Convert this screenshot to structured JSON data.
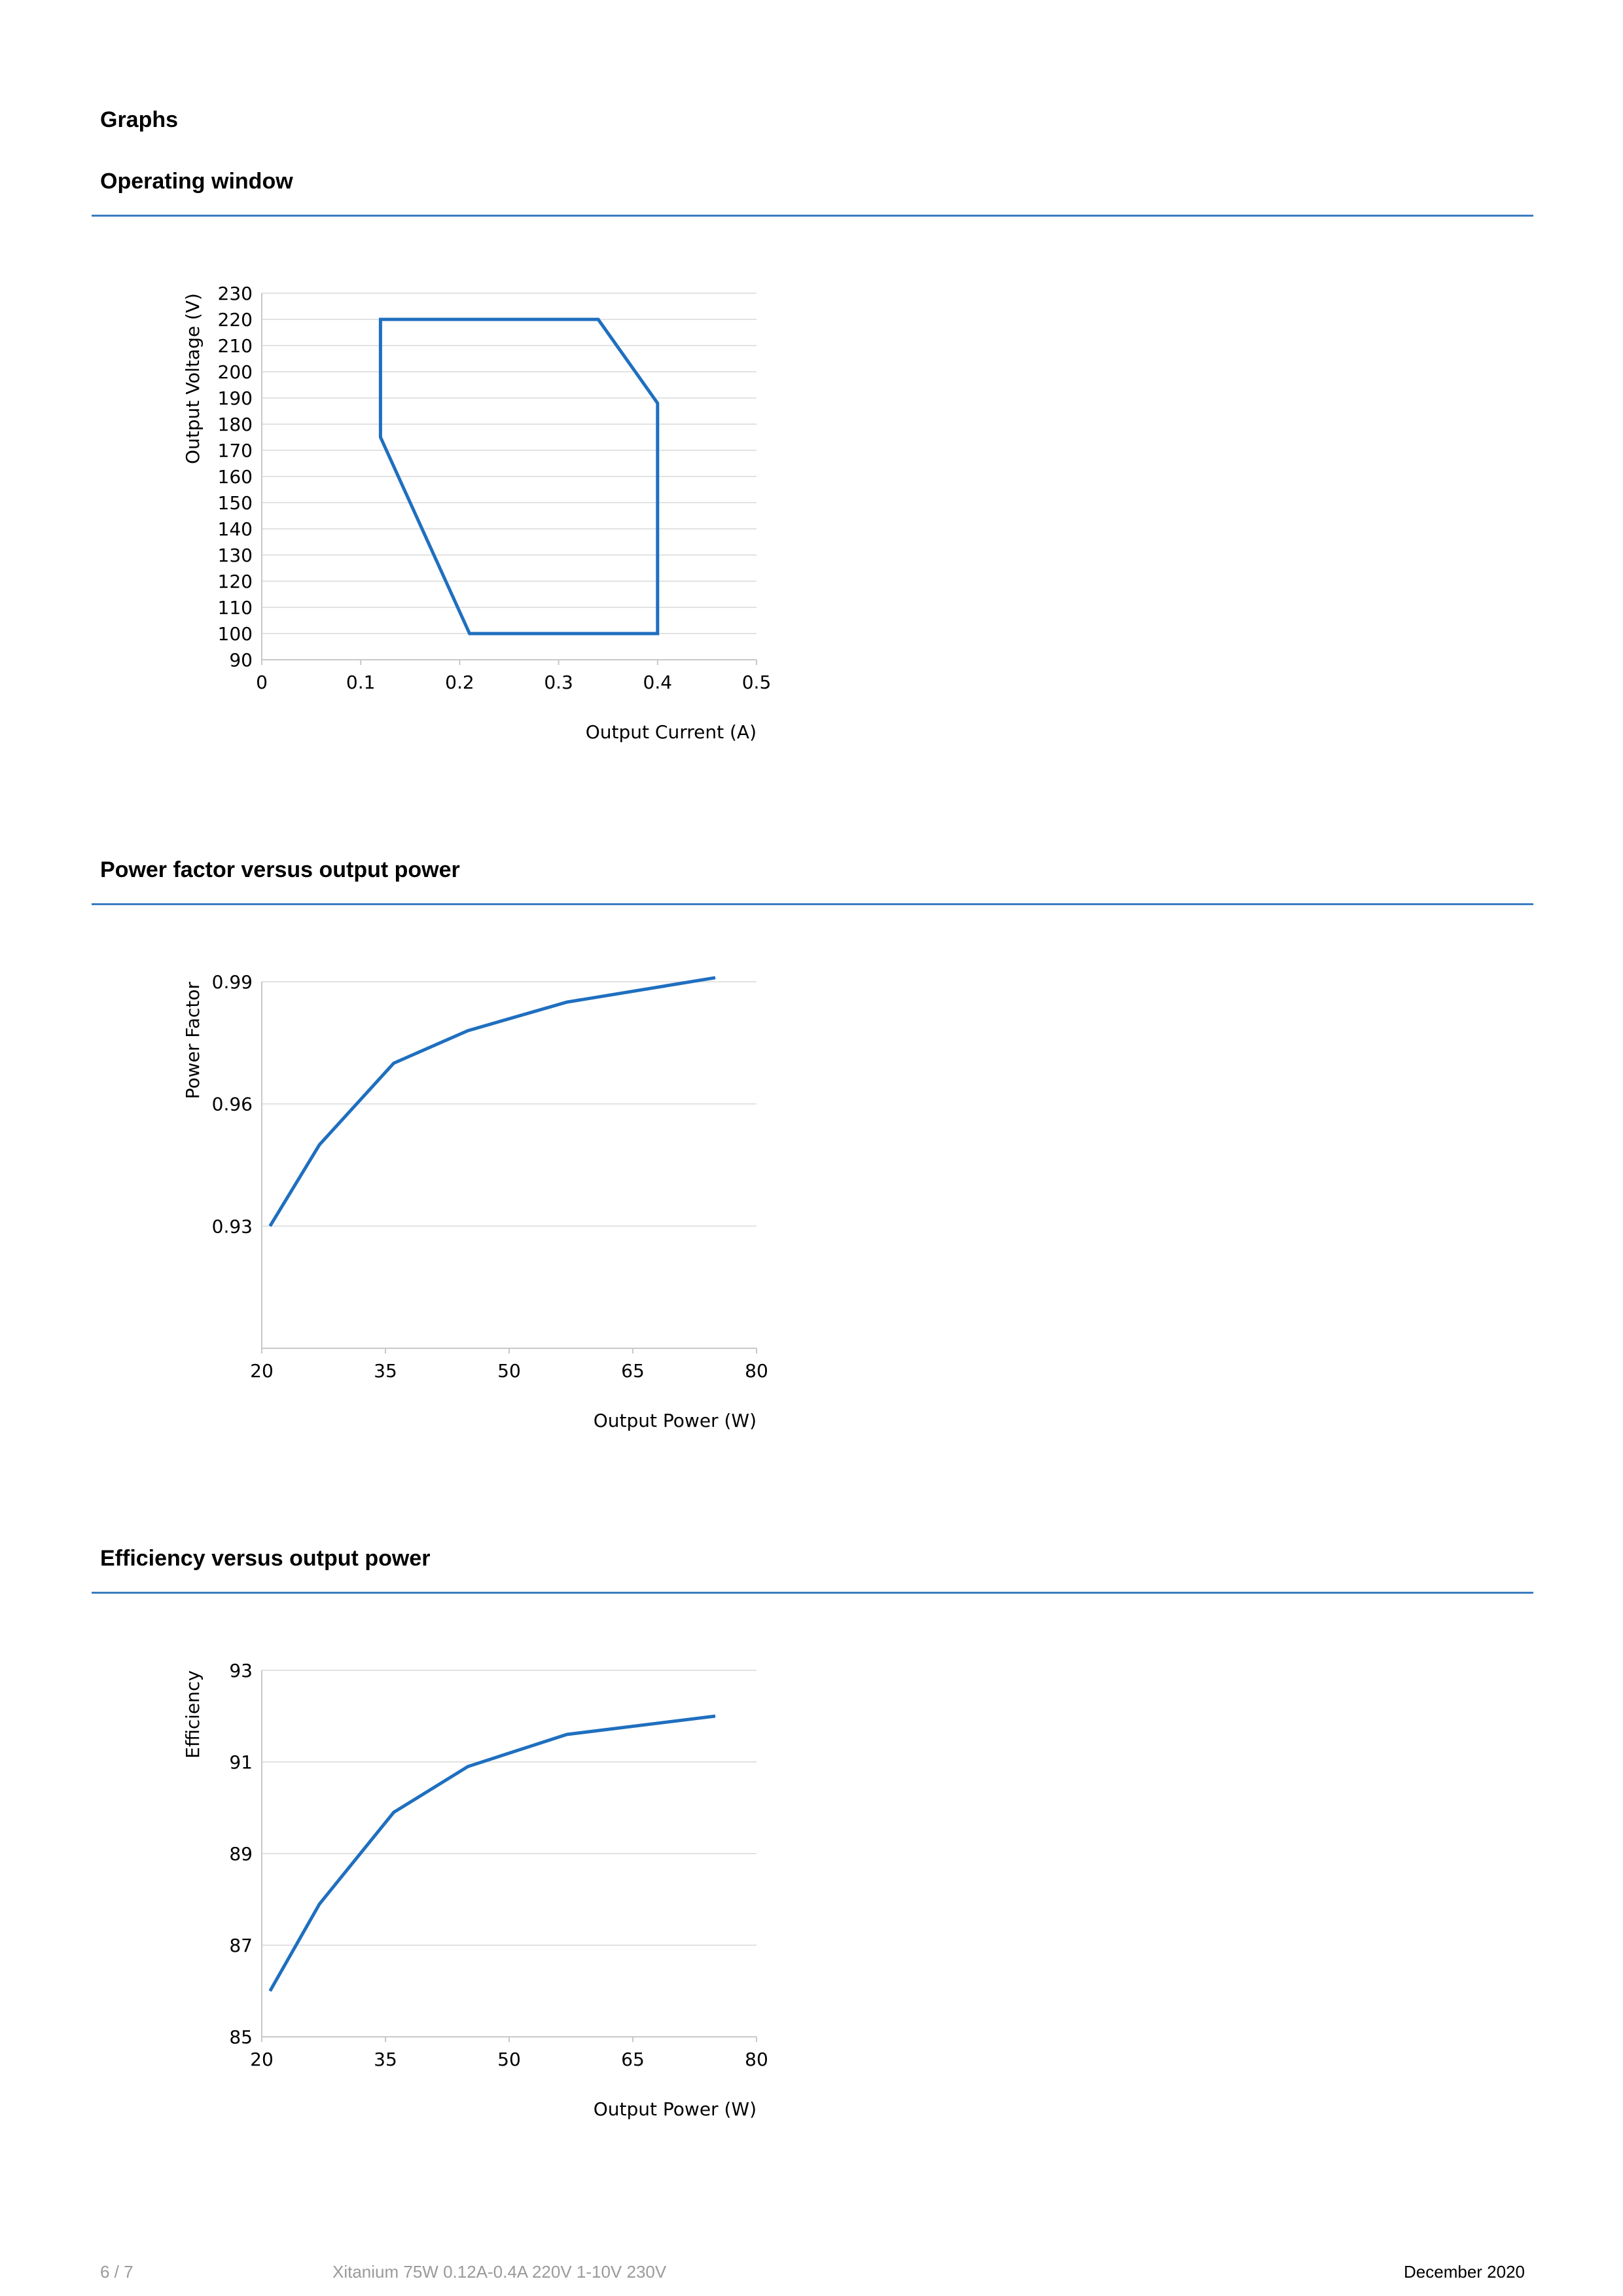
{
  "page": {
    "section_title": "Graphs",
    "footer": {
      "page_number": "6 / 7",
      "product": "Xitanium 75W 0.12A-0.4A 220V 1-10V 230V",
      "date": "December 2020"
    }
  },
  "colors": {
    "line": "#1f6fbf",
    "rule": "#3b7cc0",
    "grid": "#e2e2e2",
    "axis": "#c8c8c8"
  },
  "charts": [
    {
      "heading": "Operating window"
    },
    {
      "heading": "Power factor versus output power"
    },
    {
      "heading": "Efficiency versus output power"
    }
  ],
  "chart_data": [
    {
      "type": "line",
      "title": "Operating window",
      "xlabel": "Output Current (A)",
      "ylabel": "Output Voltage (V)",
      "xlim": [
        0,
        0.5
      ],
      "ylim": [
        90,
        230
      ],
      "xticks": [
        "0",
        "0.1",
        "0.2",
        "0.3",
        "0.4",
        "0.5"
      ],
      "xtick_values": [
        0,
        0.1,
        0.2,
        0.3,
        0.4,
        0.5
      ],
      "yticks": [
        "90",
        "100",
        "110",
        "120",
        "130",
        "140",
        "150",
        "160",
        "170",
        "180",
        "190",
        "200",
        "210",
        "220",
        "230"
      ],
      "ytick_values": [
        90,
        100,
        110,
        120,
        130,
        140,
        150,
        160,
        170,
        180,
        190,
        200,
        210,
        220,
        230
      ],
      "grid": true,
      "series": [
        {
          "closed": true,
          "x": [
            0.12,
            0.34,
            0.4,
            0.4,
            0.21,
            0.12
          ],
          "y": [
            220,
            220,
            188,
            100,
            100,
            175
          ]
        }
      ]
    },
    {
      "type": "line",
      "title": "Power factor versus output power",
      "xlabel": "Output Power (W)",
      "ylabel": "Power Factor",
      "xlim": [
        20,
        80
      ],
      "ylim": [
        0.9,
        0.99
      ],
      "xticks": [
        "20",
        "35",
        "50",
        "65",
        "80"
      ],
      "xtick_values": [
        20,
        35,
        50,
        65,
        80
      ],
      "yticks": [
        "0.93",
        "0.96",
        "0.99"
      ],
      "ytick_values": [
        0.93,
        0.96,
        0.99
      ],
      "grid": true,
      "series": [
        {
          "x": [
            21,
            27,
            36,
            45,
            57,
            75
          ],
          "y": [
            0.93,
            0.95,
            0.97,
            0.978,
            0.985,
            0.991
          ]
        }
      ]
    },
    {
      "type": "line",
      "title": "Efficiency versus output power",
      "xlabel": "Output Power (W)",
      "ylabel": "Efficiency",
      "xlim": [
        20,
        80
      ],
      "ylim": [
        85,
        93
      ],
      "xticks": [
        "20",
        "35",
        "50",
        "65",
        "80"
      ],
      "xtick_values": [
        20,
        35,
        50,
        65,
        80
      ],
      "yticks": [
        "85",
        "87",
        "89",
        "91",
        "93"
      ],
      "ytick_values": [
        85,
        87,
        89,
        91,
        93
      ],
      "grid": true,
      "series": [
        {
          "x": [
            21,
            27,
            36,
            45,
            57,
            75
          ],
          "y": [
            86.0,
            87.9,
            89.9,
            90.9,
            91.6,
            92.0
          ]
        }
      ]
    }
  ]
}
